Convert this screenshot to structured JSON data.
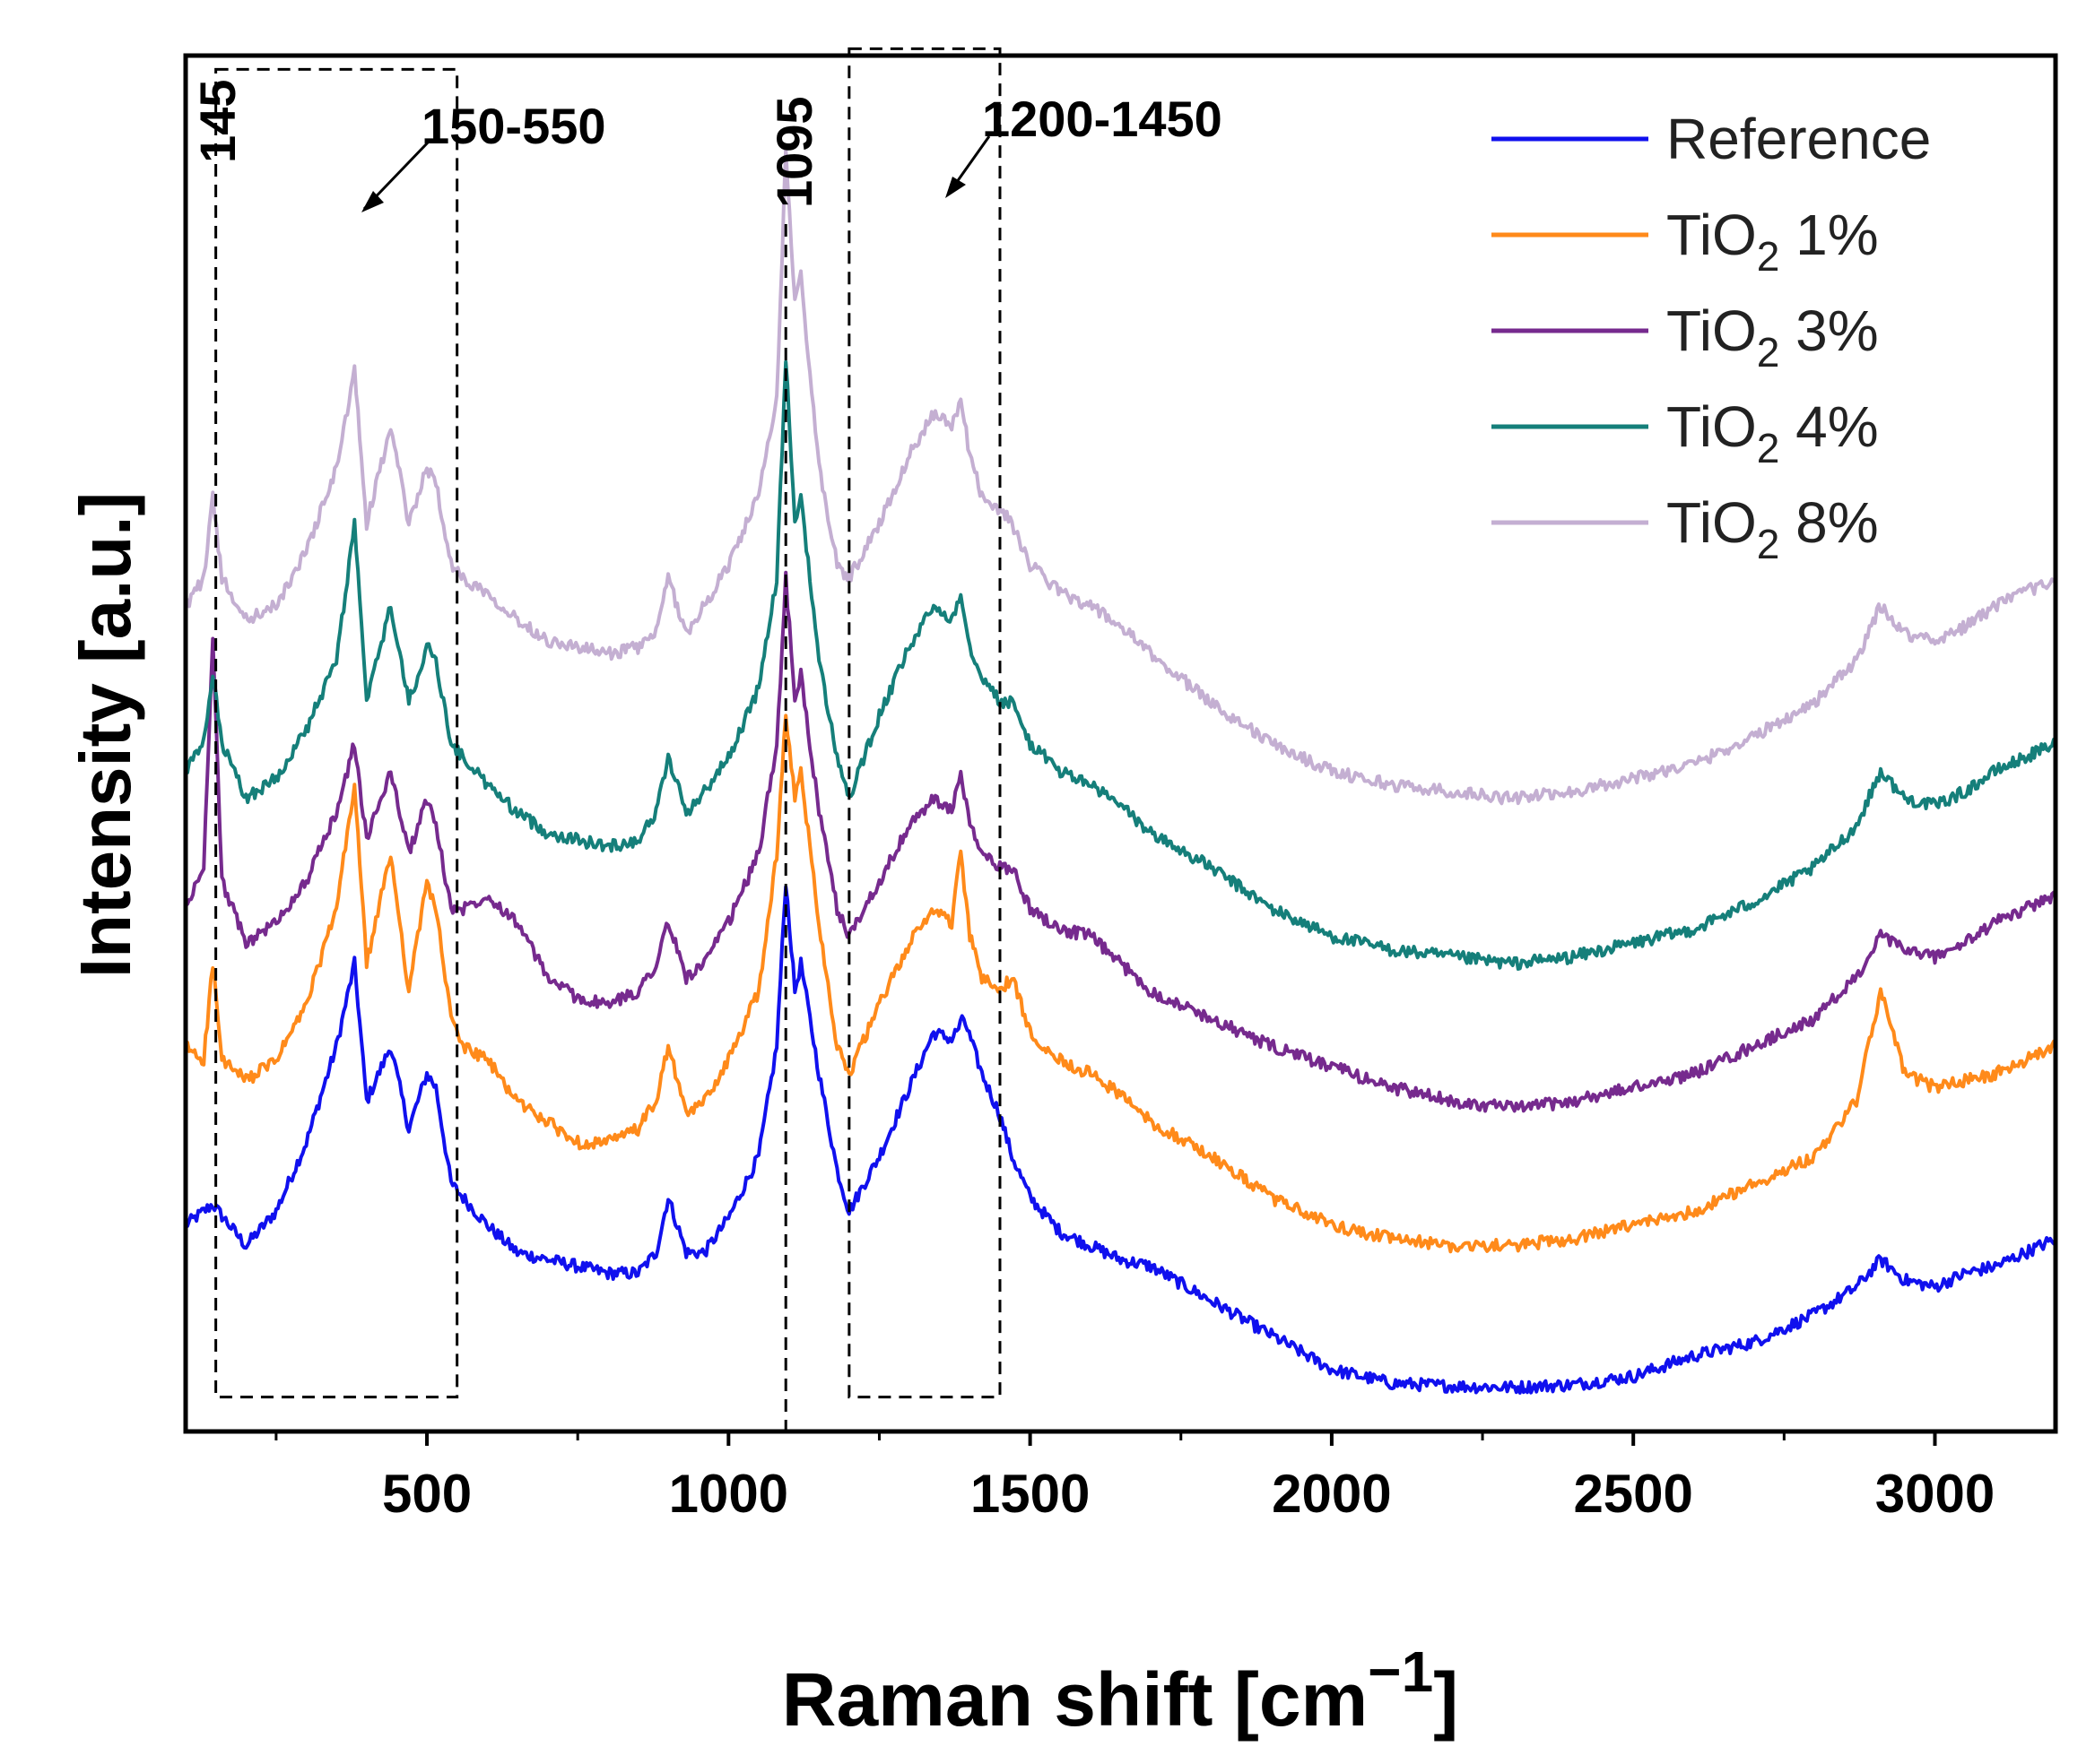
{
  "chart_data": {
    "type": "line",
    "title": "",
    "xlabel_main": "Raman shift [cm",
    "xlabel_sup": "−1",
    "xlabel_close": "]",
    "ylabel": "Intensity [a.u.]",
    "xlim": [
      100,
      3200
    ],
    "ylim": [
      0,
      100
    ],
    "y_ticks_shown": false,
    "grid": false,
    "legend_position": "top-right",
    "x_ticks": [
      500,
      1000,
      1500,
      2000,
      2500,
      3000
    ],
    "x_tick_labels": [
      "500",
      "1000",
      "1500",
      "2000",
      "2500",
      "3000"
    ],
    "x_minor_ticks": [
      250,
      750,
      1250,
      1750,
      2250,
      2750
    ],
    "series": [
      {
        "name": "Reference",
        "legend": {
          "main": "Reference",
          "sub": "",
          "rest": ""
        },
        "color": "#1010ee",
        "x": [
          100,
          145,
          200,
          250,
          300,
          350,
          380,
          400,
          440,
          470,
          500,
          515,
          540,
          560,
          600,
          650,
          700,
          750,
          800,
          850,
          880,
          900,
          930,
          960,
          1000,
          1050,
          1080,
          1095,
          1110,
          1120,
          1150,
          1180,
          1200,
          1250,
          1300,
          1340,
          1370,
          1390,
          1420,
          1450,
          1470,
          1500,
          1550,
          1600,
          1650,
          1700,
          1800,
          1900,
          2000,
          2100,
          2200,
          2300,
          2400,
          2500,
          2600,
          2700,
          2800,
          2870,
          2910,
          2950,
          3000,
          3050,
          3100,
          3150,
          3200
        ],
        "y": [
          15,
          16.5,
          13.5,
          16,
          21,
          28,
          34,
          24,
          28,
          22,
          26,
          25,
          18,
          17,
          15,
          13,
          12.5,
          12,
          11.5,
          11.5,
          13,
          17,
          13,
          13,
          15.5,
          20,
          28,
          40,
          32,
          34,
          26,
          19,
          16,
          20,
          25,
          29,
          28.5,
          30,
          26,
          23,
          20,
          17,
          14.5,
          13.5,
          12.5,
          12,
          9.5,
          7,
          4.5,
          3.5,
          3.3,
          3.2,
          3.4,
          4,
          5.5,
          6.5,
          8.5,
          10.5,
          12.5,
          11,
          10.5,
          11.5,
          12,
          13,
          14
        ]
      },
      {
        "name": "TiO2 1%",
        "legend": {
          "main": "TiO",
          "sub": "2",
          "rest": " 1%"
        },
        "color": "#ff8a1a",
        "x": [
          100,
          130,
          145,
          160,
          200,
          250,
          300,
          350,
          380,
          400,
          440,
          470,
          500,
          515,
          540,
          560,
          600,
          650,
          700,
          750,
          800,
          850,
          880,
          900,
          930,
          960,
          1000,
          1050,
          1080,
          1095,
          1110,
          1120,
          1150,
          1180,
          1200,
          1250,
          1300,
          1340,
          1370,
          1385,
          1400,
          1420,
          1450,
          1470,
          1500,
          1550,
          1600,
          1650,
          1700,
          1800,
          1900,
          2000,
          2100,
          2200,
          2300,
          2400,
          2500,
          2600,
          2700,
          2800,
          2870,
          2910,
          2950,
          3000,
          3050,
          3100,
          3150,
          3200
        ],
        "y": [
          28,
          27,
          34,
          27,
          25.5,
          27,
          31,
          38,
          47,
          34,
          42,
          32,
          40,
          38,
          30,
          28,
          27,
          24,
          22.5,
          21,
          21,
          22,
          24,
          28,
          23,
          24,
          27,
          32,
          42,
          52,
          46,
          48,
          37,
          28,
          26,
          31,
          35.5,
          38,
          37,
          42,
          36,
          33,
          32,
          33,
          29,
          27,
          26,
          24.5,
          22.5,
          20,
          17,
          15,
          14,
          13.5,
          13.5,
          14,
          15,
          16,
          18,
          20,
          24,
          32,
          26,
          25,
          25.5,
          26,
          27,
          28
        ]
      },
      {
        "name": "TiO2 3%",
        "legend": {
          "main": "TiO",
          "sub": "2",
          "rest": " 3%"
        },
        "color": "#762a8e",
        "x": [
          100,
          130,
          145,
          160,
          200,
          250,
          300,
          350,
          380,
          400,
          440,
          470,
          500,
          515,
          540,
          560,
          600,
          650,
          700,
          750,
          800,
          850,
          880,
          900,
          930,
          960,
          1000,
          1050,
          1080,
          1095,
          1110,
          1120,
          1150,
          1180,
          1200,
          1250,
          1300,
          1340,
          1370,
          1385,
          1400,
          1420,
          1450,
          1470,
          1500,
          1550,
          1600,
          1650,
          1700,
          1800,
          1900,
          2000,
          2100,
          2200,
          2300,
          2400,
          2500,
          2600,
          2700,
          2800,
          2870,
          2910,
          2950,
          3000,
          3050,
          3100,
          3150,
          3200
        ],
        "y": [
          38,
          41,
          58,
          40,
          35.5,
          37,
          40,
          45,
          50,
          43,
          48,
          42,
          46,
          44,
          38,
          38,
          39,
          37,
          33,
          31.5,
          31,
          32,
          34,
          37,
          33,
          34,
          37,
          42,
          50,
          62,
          53,
          55,
          45,
          38,
          36,
          40,
          44,
          46,
          45,
          48,
          44,
          42,
          41,
          41,
          38,
          36.5,
          36,
          34,
          32,
          30,
          28,
          26.5,
          25,
          24,
          23.5,
          24,
          25,
          26,
          28,
          30,
          33,
          36,
          35,
          34.5,
          35.5,
          37,
          38,
          39
        ]
      },
      {
        "name": "TiO2 4%",
        "legend": {
          "main": "TiO",
          "sub": "2",
          "rest": " 4%"
        },
        "color": "#157f7a",
        "x": [
          100,
          130,
          145,
          160,
          200,
          250,
          300,
          350,
          380,
          400,
          440,
          470,
          500,
          515,
          540,
          560,
          600,
          650,
          700,
          750,
          800,
          850,
          880,
          900,
          930,
          960,
          1000,
          1050,
          1080,
          1095,
          1110,
          1120,
          1150,
          1180,
          1200,
          1250,
          1300,
          1340,
          1370,
          1385,
          1400,
          1420,
          1450,
          1470,
          1500,
          1550,
          1600,
          1650,
          1700,
          1800,
          1900,
          2000,
          2100,
          2200,
          2300,
          2400,
          2500,
          2600,
          2700,
          2800,
          2870,
          2910,
          2950,
          3000,
          3050,
          3100,
          3150,
          3200
        ],
        "y": [
          48,
          50,
          55,
          50,
          46,
          47.5,
          51,
          56,
          66,
          53,
          60,
          53,
          57,
          56,
          50,
          49,
          47,
          45,
          43.5,
          43,
          42.5,
          43,
          45,
          49,
          45,
          46.5,
          49,
          54,
          62,
          78,
          66,
          68,
          56,
          49,
          46,
          52,
          57,
          60,
          59,
          61,
          57,
          55,
          53,
          53,
          50,
          48,
          47,
          45.5,
          43.5,
          41,
          38,
          36,
          35,
          34.5,
          34,
          34.5,
          35.5,
          36.5,
          38.5,
          41,
          44,
          48,
          46,
          45.5,
          46.5,
          48,
          49,
          50
        ]
      },
      {
        "name": "TiO2 8%",
        "legend": {
          "main": "TiO",
          "sub": "2",
          "rest": " 8%"
        },
        "color": "#c4afd2",
        "x": [
          100,
          130,
          145,
          160,
          200,
          250,
          300,
          350,
          380,
          400,
          440,
          470,
          500,
          515,
          540,
          560,
          600,
          650,
          700,
          750,
          800,
          850,
          880,
          900,
          930,
          960,
          1000,
          1050,
          1080,
          1095,
          1110,
          1120,
          1150,
          1180,
          1200,
          1250,
          1300,
          1340,
          1370,
          1385,
          1400,
          1420,
          1450,
          1470,
          1500,
          1550,
          1600,
          1650,
          1700,
          1800,
          1900,
          2000,
          2100,
          2200,
          2300,
          2400,
          2500,
          2600,
          2700,
          2800,
          2870,
          2910,
          2950,
          3000,
          3050,
          3100,
          3150,
          3200
        ],
        "y": [
          60,
          62,
          68,
          62,
          59,
          60,
          64,
          70,
          77,
          66,
          73,
          66,
          70,
          69,
          63,
          62,
          61,
          59,
          57.5,
          57,
          56.5,
          57,
          58,
          62,
          58,
          60,
          63,
          68,
          75,
          93,
          82,
          84,
          70,
          63,
          62,
          66,
          71,
          74,
          73,
          75,
          71,
          68,
          67,
          66,
          63,
          61,
          60,
          58.5,
          56.5,
          53,
          50,
          48,
          47,
          46.5,
          46,
          46.5,
          47.5,
          48.5,
          50.5,
          53,
          56,
          60,
          58,
          57.5,
          58.5,
          60,
          61,
          62
        ]
      }
    ],
    "annotations": {
      "peak_145": {
        "label": "145",
        "x": 145
      },
      "peak_1095": {
        "label": "1095",
        "x": 1095
      },
      "region_150_550": {
        "label": "150-550",
        "x_start": 150,
        "x_end": 550,
        "y_start": 2.5,
        "y_end": 99
      },
      "region_1200_1450": {
        "label": "1200-1450",
        "x_start": 1200,
        "x_end": 1450,
        "y_start": 2.5,
        "y_end": 100.5
      }
    }
  }
}
